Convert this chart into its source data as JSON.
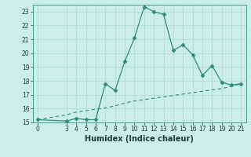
{
  "xlabel": "Humidex (Indice chaleur)",
  "x_data": [
    0,
    3,
    4,
    5,
    6,
    7,
    8,
    9,
    10,
    11,
    12,
    13,
    14,
    15,
    16,
    17,
    18,
    19,
    20,
    21
  ],
  "y_main": [
    15.2,
    15.1,
    15.3,
    15.2,
    15.2,
    17.8,
    17.3,
    19.4,
    21.1,
    23.35,
    23.0,
    22.8,
    20.2,
    20.6,
    19.9,
    18.4,
    19.1,
    17.9,
    17.7,
    17.8
  ],
  "y_trend": [
    15.2,
    15.55,
    15.75,
    15.85,
    15.95,
    16.05,
    16.2,
    16.4,
    16.55,
    16.65,
    16.75,
    16.85,
    16.95,
    17.05,
    17.15,
    17.25,
    17.35,
    17.45,
    17.6,
    17.8
  ],
  "line_color": "#2e8b7a",
  "bg_color": "#cceee8",
  "grid_color": "#aad8d0",
  "ylim": [
    15,
    23.5
  ],
  "xlim": [
    -0.5,
    21.5
  ],
  "yticks": [
    15,
    16,
    17,
    18,
    19,
    20,
    21,
    22,
    23
  ],
  "xticks": [
    0,
    3,
    4,
    5,
    6,
    7,
    8,
    9,
    10,
    11,
    12,
    13,
    14,
    15,
    16,
    17,
    18,
    19,
    20,
    21
  ],
  "tick_fontsize": 5.5,
  "xlabel_fontsize": 7.0
}
